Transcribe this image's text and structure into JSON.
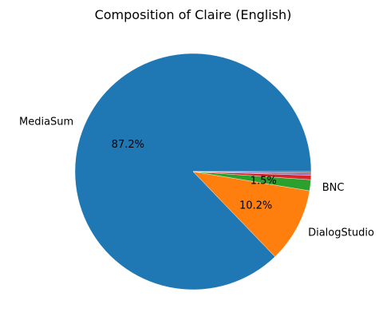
{
  "chart_data": {
    "type": "pie",
    "title": "Composition of Claire (English)",
    "slices": [
      {
        "label": "MediaSum",
        "value": 87.2,
        "pct_text": "87.2%",
        "color": "#1f77b4"
      },
      {
        "label": "DialogStudio",
        "value": 10.2,
        "pct_text": "10.2%",
        "color": "#ff7f0e"
      },
      {
        "label": "BNC",
        "value": 1.5,
        "pct_text": "1.5%",
        "color": "#2ca02c"
      },
      {
        "label": "",
        "value": 0.6,
        "pct_text": "",
        "color": "#d62728"
      },
      {
        "label": "",
        "value": 0.3,
        "pct_text": "",
        "color": "#9467bd"
      },
      {
        "label": "",
        "value": 0.2,
        "pct_text": "",
        "color": "#8c564b"
      }
    ]
  }
}
